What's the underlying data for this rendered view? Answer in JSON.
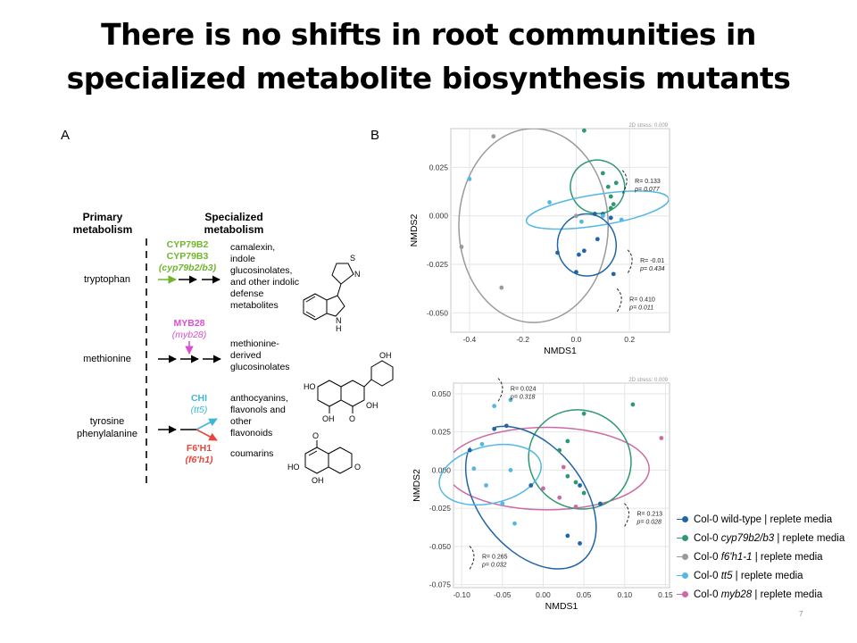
{
  "title": {
    "line1": "There is no shifts in root communities in",
    "line2": "specialized metabolite biosynthesis mutants"
  },
  "panels": {
    "a": "A",
    "b": "B"
  },
  "pathway": {
    "primary_header": [
      "Primary",
      "metabolism"
    ],
    "specialized_header": [
      "Specialized",
      "metabolism"
    ],
    "rows": [
      {
        "substrate": [
          "tryptophan"
        ],
        "enzymes": [
          "CYP79B2",
          "CYP79B3"
        ],
        "mutant": "(cyp79b2/b3)",
        "color": "#6fb52c",
        "products": [
          "camalexin,",
          "indole",
          "glucosinolates,",
          "and other indolic",
          "defense",
          "metabolites"
        ]
      },
      {
        "substrate": [
          "methionine"
        ],
        "enzymes": [
          "MYB28"
        ],
        "mutant": "(myb28)",
        "color": "#d94fd0",
        "products": [
          "methionine-",
          "derived",
          "glucosinolates"
        ]
      },
      {
        "substrate": [
          "tyrosine",
          "phenylalanine"
        ],
        "enzymes": [
          "CHI"
        ],
        "mutant": "(tt5)",
        "color": "#3db7d6",
        "products": [
          "anthocyanins,",
          "flavonols and",
          "other",
          "flavonoids"
        ]
      },
      {
        "substrate": [],
        "enzymes": [
          "F6'H1"
        ],
        "mutant": "(f6'h1)",
        "color": "#e8463a",
        "products": [
          "coumarins"
        ]
      }
    ],
    "structure_labels": {
      "n": "N",
      "s": "S",
      "nh": "N",
      "h": "H",
      "oh": "OH",
      "o": "O",
      "ho": "HO"
    }
  },
  "chart_data": [
    {
      "type": "scatter",
      "stress": "2D stress: 0.009",
      "xlabel": "NMDS1",
      "ylabel": "NMDS2",
      "xlim": [
        -0.47,
        0.35
      ],
      "ylim": [
        -0.06,
        0.045
      ],
      "xticks": [
        "-0.4",
        "-0.2",
        "0.0",
        "0.2"
      ],
      "xtick_values": [
        -0.4,
        -0.2,
        0.0,
        0.2
      ],
      "yticks": [
        "0.025",
        "0.000",
        "-0.025",
        "-0.050"
      ],
      "ytick_values": [
        0.025,
        0.0,
        -0.025,
        -0.05
      ],
      "grid": true,
      "series": [
        {
          "key": "wt",
          "points": [
            [
              -0.07,
              -0.019
            ],
            [
              0.07,
              0.001
            ],
            [
              0.13,
              -0.001
            ],
            [
              0.08,
              -0.012
            ],
            [
              0.01,
              -0.02
            ],
            [
              0.03,
              -0.018
            ],
            [
              -0.0,
              -0.029
            ],
            [
              0.14,
              -0.03
            ],
            [
              0.1,
              0.001
            ]
          ]
        },
        {
          "key": "cyp",
          "points": [
            [
              0.03,
              0.044
            ],
            [
              0.15,
              0.017
            ],
            [
              0.1,
              0.022
            ],
            [
              0.12,
              0.015
            ],
            [
              0.13,
              0.01
            ],
            [
              0.13,
              0.004
            ],
            [
              0.14,
              0.006
            ]
          ]
        },
        {
          "key": "f6h1",
          "points": [
            [
              -0.31,
              0.041
            ],
            [
              -0.43,
              -0.016
            ],
            [
              -0.28,
              -0.037
            ],
            [
              -0.0,
              0.0
            ]
          ]
        },
        {
          "key": "tt5",
          "points": [
            [
              -0.4,
              0.019
            ],
            [
              -0.1,
              0.007
            ],
            [
              0.1,
              0.0
            ],
            [
              0.17,
              -0.002
            ],
            [
              0.02,
              -0.003
            ]
          ]
        },
        {
          "key": "myb28",
          "points": []
        }
      ],
      "ellipses": [
        {
          "key": "f6h1",
          "cx": -0.16,
          "cy": -0.005,
          "rx": 0.28,
          "ry": 0.05,
          "angle": 0
        },
        {
          "key": "cyp",
          "cx": 0.08,
          "cy": 0.015,
          "rx": 0.1,
          "ry": 0.014,
          "angle": -70
        },
        {
          "key": "tt5",
          "cx": 0.08,
          "cy": 0.003,
          "rx": 0.27,
          "ry": 0.008,
          "angle": -9
        },
        {
          "key": "wt",
          "cx": 0.04,
          "cy": -0.015,
          "rx": 0.11,
          "ry": 0.016,
          "angle": -5
        }
      ],
      "annotations": [
        {
          "lines": [
            "R= 0.133",
            "p= 0.077"
          ],
          "x": 0.22,
          "y": 0.017
        },
        {
          "lines": [
            "R= -0.01",
            "p= 0.434"
          ],
          "x": 0.24,
          "y": -0.024
        },
        {
          "lines": [
            "R= 0.410",
            "p= 0.011"
          ],
          "x": 0.2,
          "y": -0.044
        }
      ]
    },
    {
      "type": "scatter",
      "stress": "2D stress: 0.009",
      "xlabel": "NMDS1",
      "ylabel": "NMDS2",
      "xlim": [
        -0.11,
        0.155
      ],
      "ylim": [
        -0.077,
        0.057
      ],
      "xticks": [
        "-0.10",
        "-0.05",
        "0.00",
        "0.05",
        "0.10",
        "0.15"
      ],
      "xtick_values": [
        -0.1,
        -0.05,
        0.0,
        0.05,
        0.1,
        0.15
      ],
      "yticks": [
        "0.050",
        "0.025",
        "0.000",
        "-0.025",
        "-0.050",
        "-0.075"
      ],
      "ytick_values": [
        0.05,
        0.025,
        0.0,
        -0.025,
        -0.05,
        -0.075
      ],
      "grid": true,
      "series": [
        {
          "key": "wt",
          "points": [
            [
              -0.09,
              0.013
            ],
            [
              -0.06,
              0.027
            ],
            [
              -0.045,
              0.029
            ],
            [
              -0.015,
              -0.01
            ],
            [
              0.03,
              -0.043
            ],
            [
              0.045,
              -0.01
            ],
            [
              0.07,
              -0.022
            ],
            [
              0.045,
              -0.048
            ]
          ]
        },
        {
          "key": "cyp",
          "points": [
            [
              0.05,
              0.037
            ],
            [
              0.03,
              0.019
            ],
            [
              0.02,
              0.013
            ],
            [
              0.04,
              -0.008
            ],
            [
              0.03,
              -0.004
            ],
            [
              0.05,
              -0.015
            ],
            [
              0.11,
              0.043
            ]
          ]
        },
        {
          "key": "f6h1",
          "points": []
        },
        {
          "key": "tt5",
          "points": [
            [
              -0.075,
              0.017
            ],
            [
              -0.085,
              0.001
            ],
            [
              -0.07,
              -0.01
            ],
            [
              -0.05,
              -0.022
            ],
            [
              -0.04,
              0.0
            ],
            [
              -0.035,
              -0.035
            ],
            [
              -0.06,
              0.042
            ],
            [
              -0.04,
              0.046
            ]
          ]
        },
        {
          "key": "myb28",
          "points": [
            [
              0.025,
              0.002
            ],
            [
              0.02,
              -0.018
            ],
            [
              0.04,
              -0.024
            ],
            [
              0.0,
              -0.012
            ],
            [
              0.145,
              0.021
            ]
          ]
        }
      ],
      "ellipses": [
        {
          "key": "myb28",
          "cx": 0.005,
          "cy": 0.001,
          "rx": 0.125,
          "ry": 0.027,
          "angle": 0
        },
        {
          "key": "cyp",
          "cx": 0.045,
          "cy": 0.007,
          "rx": 0.06,
          "ry": 0.034,
          "angle": -62
        },
        {
          "key": "wt",
          "cx": -0.015,
          "cy": -0.018,
          "rx": 0.1,
          "ry": 0.034,
          "angle": 51
        },
        {
          "key": "tt5",
          "cx": -0.065,
          "cy": -0.003,
          "rx": 0.035,
          "ry": 0.034,
          "angle": 77
        }
      ],
      "annotations": [
        {
          "lines": [
            "R= 0.024",
            "p= 0.318"
          ],
          "x": -0.04,
          "y": 0.052
        },
        {
          "lines": [
            "R= 0.213",
            "p= 0.028"
          ],
          "x": 0.115,
          "y": -0.03
        },
        {
          "lines": [
            "R= 0.265",
            "p= 0.032"
          ],
          "x": -0.075,
          "y": -0.058
        }
      ]
    }
  ],
  "legend": [
    {
      "key": "wt",
      "color": "#2065a6",
      "prefix": "Col-0 ",
      "italic": "",
      "suffix": "wild-type | replete media"
    },
    {
      "key": "cyp",
      "color": "#2e9970",
      "prefix": "Col-0 ",
      "italic": "cyp79b2/b3",
      "suffix": " | replete media"
    },
    {
      "key": "f6h1",
      "color": "#9a9a9a",
      "prefix": "Col-0 ",
      "italic": "f6'h1-1",
      "suffix": " | replete media"
    },
    {
      "key": "tt5",
      "color": "#54b7e6",
      "prefix": "Col-0 ",
      "italic": "tt5",
      "suffix": " | replete media"
    },
    {
      "key": "myb28",
      "color": "#cc6aa5",
      "prefix": "Col-0 ",
      "italic": "myb28",
      "suffix": " | replete media"
    }
  ],
  "page_number": "7"
}
